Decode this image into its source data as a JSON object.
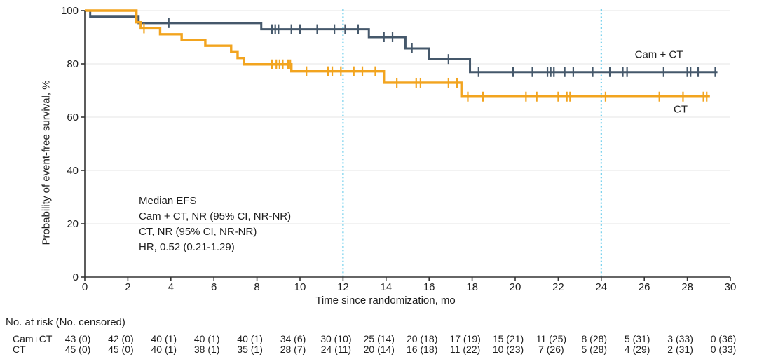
{
  "chart_data": {
    "type": "line",
    "subtype": "kaplan-meier-step",
    "title": "",
    "xlabel": "Time since randomization, mo",
    "ylabel": "Probability of event-free survival, %",
    "xlim": [
      0,
      30
    ],
    "ylim": [
      0,
      100
    ],
    "x_ticks": [
      0,
      2,
      4,
      6,
      8,
      10,
      12,
      14,
      16,
      18,
      20,
      22,
      24,
      26,
      28,
      30
    ],
    "y_ticks": [
      0,
      20,
      40,
      60,
      80,
      100
    ],
    "grid": true,
    "reference_lines_x": [
      12,
      24
    ],
    "colors": {
      "reference_line": "#5cc8e9",
      "grid_line": "#eaeaea",
      "axis": "#333333",
      "text": "#1e1e1e"
    },
    "annotation": {
      "lines": [
        "Median EFS",
        "Cam + CT, NR (95% CI, NR-NR)",
        "CT, NR (95% CI, NR-NR)",
        "HR, 0.52 (0.21-1.29)"
      ]
    },
    "series": [
      {
        "name": "Cam + CT",
        "color": "#45586b",
        "steps": [
          [
            0,
            100
          ],
          [
            0.25,
            97.7
          ],
          [
            2.5,
            95.3
          ],
          [
            8.2,
            93.0
          ],
          [
            13.2,
            90.0
          ],
          [
            14.9,
            85.8
          ],
          [
            16.0,
            81.8
          ],
          [
            17.9,
            76.9
          ]
        ],
        "end": 29.4,
        "censors": [
          3.9,
          8.7,
          8.85,
          9.0,
          9.6,
          10.0,
          10.8,
          11.6,
          12.1,
          12.7,
          13.9,
          14.3,
          15.2,
          16.9,
          18.3,
          19.9,
          20.8,
          21.5,
          21.65,
          21.8,
          22.3,
          22.7,
          23.6,
          24.4,
          25.0,
          25.2,
          26.9,
          28.0,
          28.15,
          28.5,
          29.3
        ]
      },
      {
        "name": "CT",
        "color": "#f2a41f",
        "steps": [
          [
            0,
            100
          ],
          [
            2.4,
            95.6
          ],
          [
            2.6,
            93.3
          ],
          [
            3.5,
            91.1
          ],
          [
            4.5,
            88.9
          ],
          [
            5.6,
            86.8
          ],
          [
            6.8,
            84.4
          ],
          [
            7.1,
            82.2
          ],
          [
            7.4,
            79.8
          ],
          [
            9.6,
            77.2
          ],
          [
            13.9,
            72.9
          ],
          [
            17.5,
            67.7
          ]
        ],
        "end": 29.05,
        "censors": [
          2.75,
          8.7,
          8.9,
          9.05,
          9.2,
          9.45,
          9.55,
          10.3,
          11.3,
          11.5,
          11.9,
          12.5,
          12.9,
          13.5,
          14.5,
          15.4,
          15.6,
          16.9,
          17.3,
          17.8,
          18.5,
          20.5,
          21.0,
          22.0,
          22.4,
          22.55,
          24.2,
          26.7,
          27.8,
          28.75,
          28.9
        ]
      }
    ]
  },
  "risk_table": {
    "header": "No. at risk (No. censored)",
    "times": [
      0,
      2,
      4,
      6,
      8,
      10,
      12,
      14,
      16,
      18,
      20,
      22,
      24,
      26,
      28,
      30
    ],
    "rows": [
      {
        "label": "Cam+CT",
        "values": [
          "43 (0)",
          "42 (0)",
          "40 (1)",
          "40 (1)",
          "40 (1)",
          "34 (6)",
          "30 (10)",
          "25 (14)",
          "20 (18)",
          "17 (19)",
          "15 (21)",
          "11 (25)",
          "8 (28)",
          "5 (31)",
          "3 (33)",
          "0 (36)"
        ]
      },
      {
        "label": "CT",
        "values": [
          "45 (0)",
          "45 (0)",
          "40 (1)",
          "38 (1)",
          "35 (1)",
          "28 (7)",
          "24 (11)",
          "20 (14)",
          "16 (18)",
          "11 (22)",
          "10 (23)",
          "7 (26)",
          "5 (28)",
          "4 (29)",
          "2 (31)",
          "0 (33)"
        ]
      }
    ]
  }
}
